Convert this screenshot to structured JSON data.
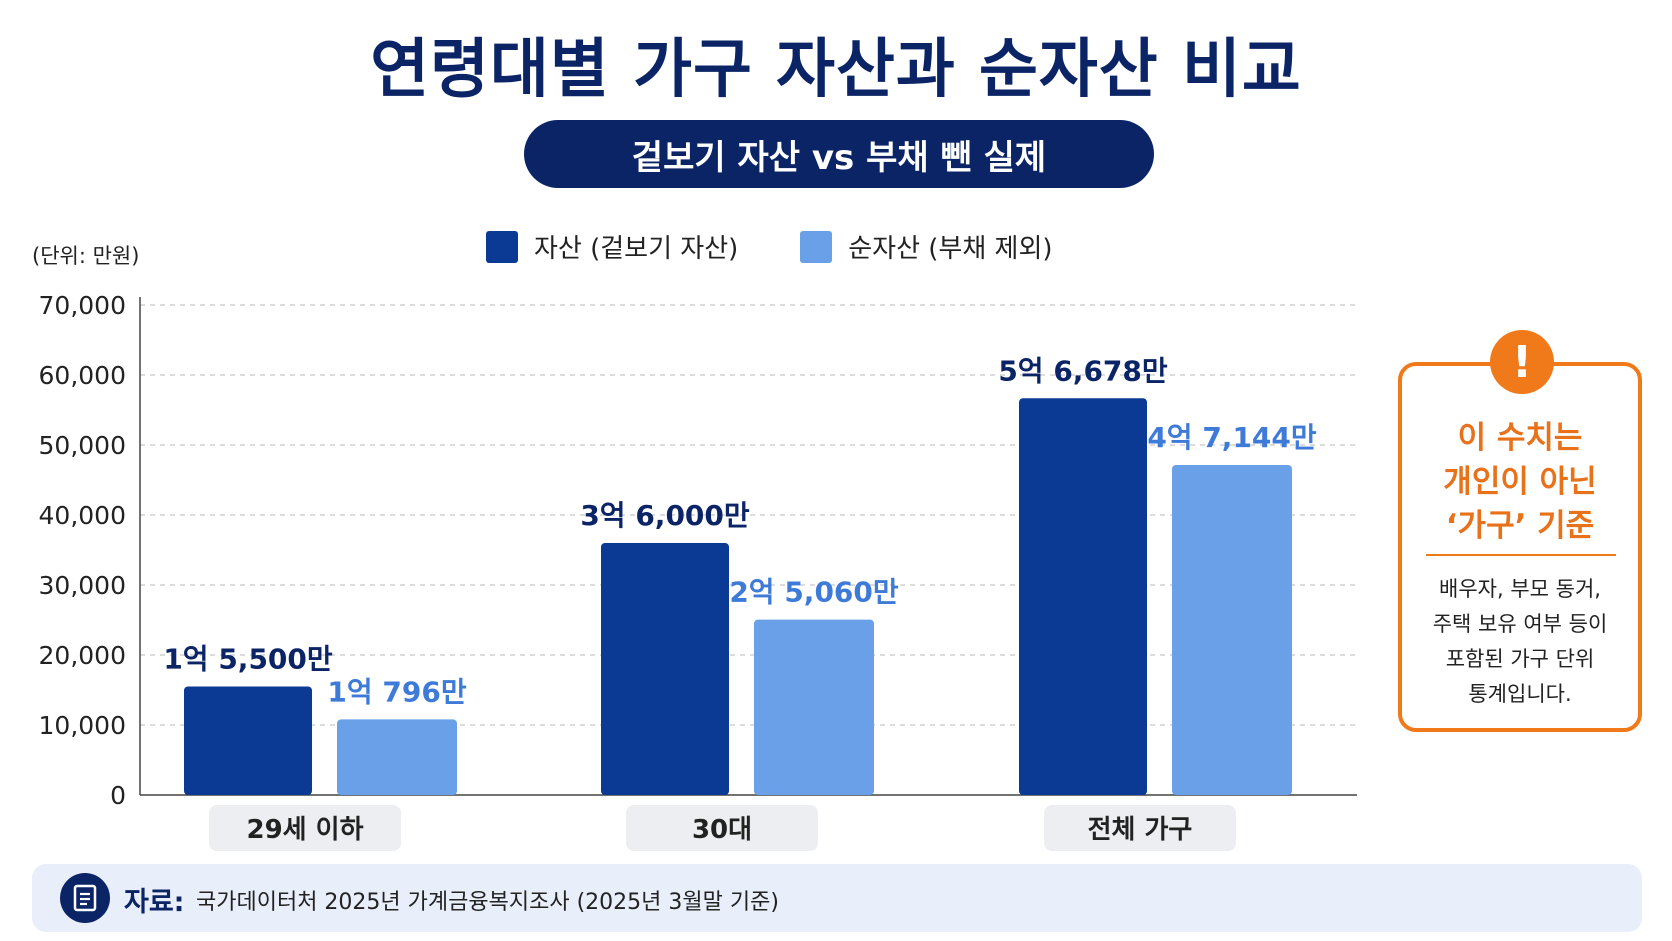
{
  "title": "연령대별 가구 자산과 순자산 비교",
  "subtitle": "겉보기 자산 vs 부채 뺀 실제",
  "unit_label": "(단위: 만원)",
  "legend": [
    {
      "label": "자산 (겉보기 자산)",
      "color": "#0b3a94"
    },
    {
      "label": "순자산 (부채 제외)",
      "color": "#6aa0e8"
    }
  ],
  "chart_data": {
    "type": "bar",
    "categories": [
      "29세 이하",
      "30대",
      "전체 가구"
    ],
    "series": [
      {
        "name": "자산 (겉보기 자산)",
        "values": [
          15500,
          36000,
          56678
        ],
        "labels": [
          "1억 5,500만",
          "3억 6,000만",
          "5억 6,678만"
        ],
        "color": "#0b3a94",
        "label_color": "#0b2466"
      },
      {
        "name": "순자산 (부채 제외)",
        "values": [
          10796,
          25060,
          47144
        ],
        "labels": [
          "1억 796만",
          "2억 5,060만",
          "4억 7,144만"
        ],
        "color": "#6aa0e8",
        "label_color": "#3e7ad8"
      }
    ],
    "yticks": [
      "0",
      "10,000",
      "20,000",
      "30,000",
      "40,000",
      "50,000",
      "60,000",
      "70,000"
    ],
    "ylim": [
      0,
      70000
    ],
    "grid": true,
    "legend_position": "top-center"
  },
  "note": {
    "icon": "exclamation-icon",
    "heading": "이 수치는\n개인이 아닌\n‘가구’ 기준",
    "body": "배우자, 부모 동거,\n주택 보유 여부 등이\n포함된 가구 단위\n통계입니다.",
    "color": "#f07a1a"
  },
  "source": {
    "icon": "document-icon",
    "label": "자료:",
    "text": "국가데이터처 2025년 가계금융복지조사 (2025년 3월말 기준)"
  }
}
